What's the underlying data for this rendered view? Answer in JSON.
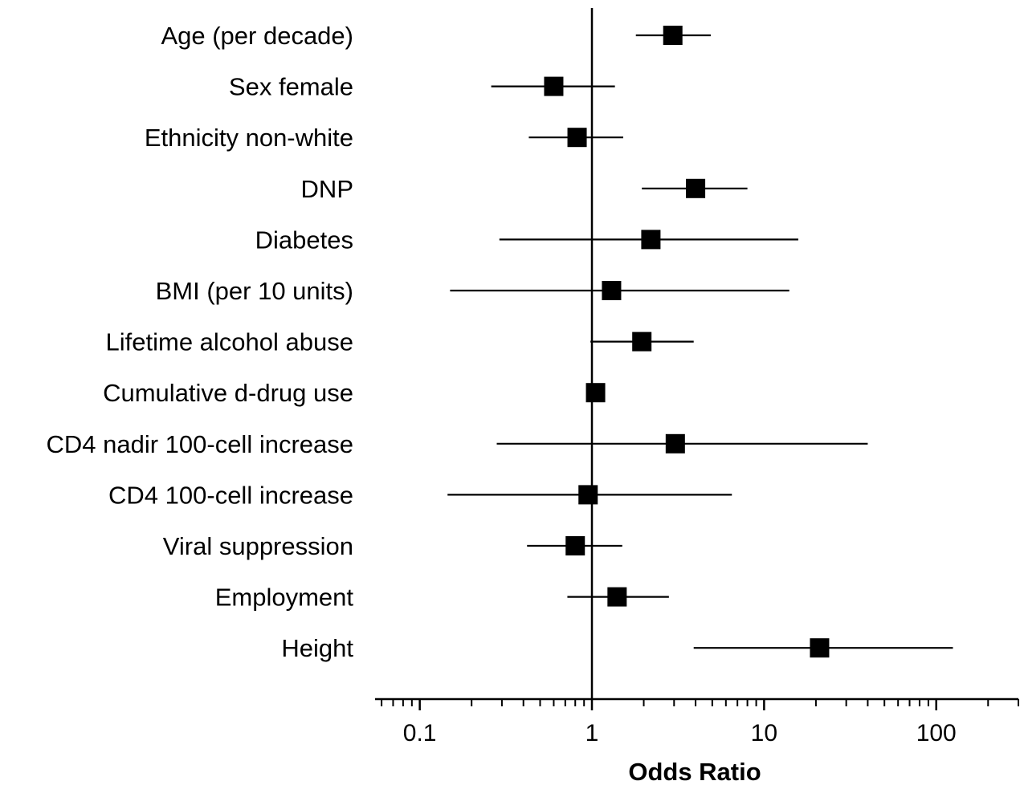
{
  "chart_data": {
    "type": "forest",
    "xlabel": "Odds Ratio",
    "x_scale": "log",
    "xlim": [
      0.055,
      300
    ],
    "x_ticks": [
      0.1,
      1,
      10,
      100
    ],
    "x_tick_labels": [
      "0.1",
      "1",
      "10",
      "100"
    ],
    "reference_line": 1,
    "grid": false,
    "rows": [
      {
        "label": "Age (per decade)",
        "or": 2.95,
        "lower": 1.8,
        "upper": 4.9
      },
      {
        "label": "Sex female",
        "or": 0.6,
        "lower": 0.26,
        "upper": 1.36
      },
      {
        "label": "Ethnicity non-white",
        "or": 0.82,
        "lower": 0.43,
        "upper": 1.52
      },
      {
        "label": "DNP",
        "or": 4.0,
        "lower": 1.95,
        "upper": 8.0
      },
      {
        "label": "Diabetes",
        "or": 2.2,
        "lower": 0.29,
        "upper": 15.8
      },
      {
        "label": "BMI (per 10 units)",
        "or": 1.3,
        "lower": 0.15,
        "upper": 14.0
      },
      {
        "label": "Lifetime alcohol abuse",
        "or": 1.95,
        "lower": 0.98,
        "upper": 3.9
      },
      {
        "label": "Cumulative d-drug use",
        "or": 1.05,
        "lower": 1.0,
        "upper": 1.12
      },
      {
        "label": "CD4 nadir 100-cell increase",
        "or": 3.05,
        "lower": 0.28,
        "upper": 40.0
      },
      {
        "label": "CD4 100-cell increase",
        "or": 0.95,
        "lower": 0.145,
        "upper": 6.5
      },
      {
        "label": "Viral suppression",
        "or": 0.8,
        "lower": 0.42,
        "upper": 1.5
      },
      {
        "label": "Employment",
        "or": 1.4,
        "lower": 0.72,
        "upper": 2.8
      },
      {
        "label": "Height",
        "or": 21.0,
        "lower": 3.9,
        "upper": 125.0
      }
    ]
  }
}
